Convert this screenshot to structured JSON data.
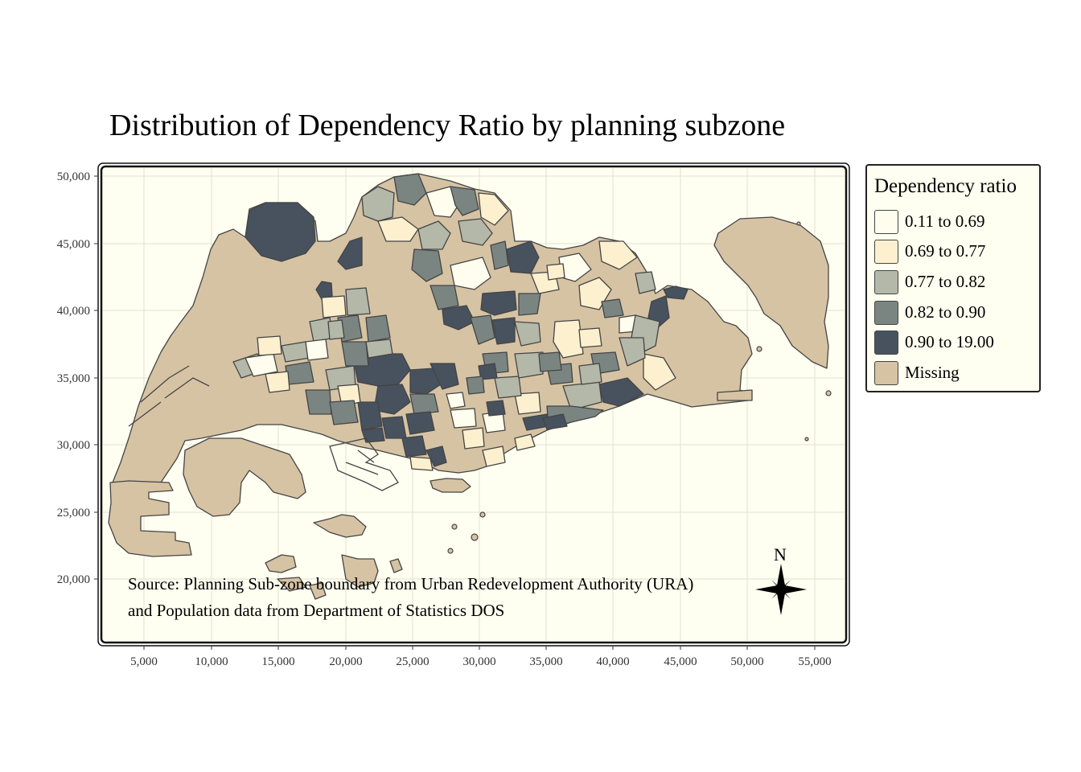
{
  "title": "Distribution of Dependency Ratio by planning subzone",
  "legend": {
    "title": "Dependency ratio",
    "items": [
      {
        "label": "0.11 to 0.69",
        "color": "#fffdee"
      },
      {
        "label": "0.69 to 0.77",
        "color": "#fdf0cf"
      },
      {
        "label": "0.77 to 0.82",
        "color": "#b3b8a8"
      },
      {
        "label": "0.82 to 0.90",
        "color": "#7a8582"
      },
      {
        "label": "0.90 to 19.00",
        "color": "#47525e"
      },
      {
        "label": "Missing",
        "color": "#d6c3a4"
      }
    ]
  },
  "source": {
    "line1": "Source: Planning Sub-zone boundary from Urban Redevelopment Authority (URA)",
    "line2": " and Population data from Department of Statistics DOS"
  },
  "compass": {
    "label": "N",
    "icon": "north-arrow-icon"
  },
  "axes": {
    "x_ticks": [
      "5,000",
      "10,000",
      "15,000",
      "20,000",
      "25,000",
      "30,000",
      "35,000",
      "40,000",
      "45,000",
      "50,000",
      "55,000"
    ],
    "y_ticks": [
      "50,000",
      "45,000",
      "40,000",
      "35,000",
      "30,000",
      "25,000",
      "20,000"
    ]
  },
  "colors": {
    "panel_background": "#fffff1",
    "border": "#111111",
    "subzone_outline": "#444444"
  }
}
